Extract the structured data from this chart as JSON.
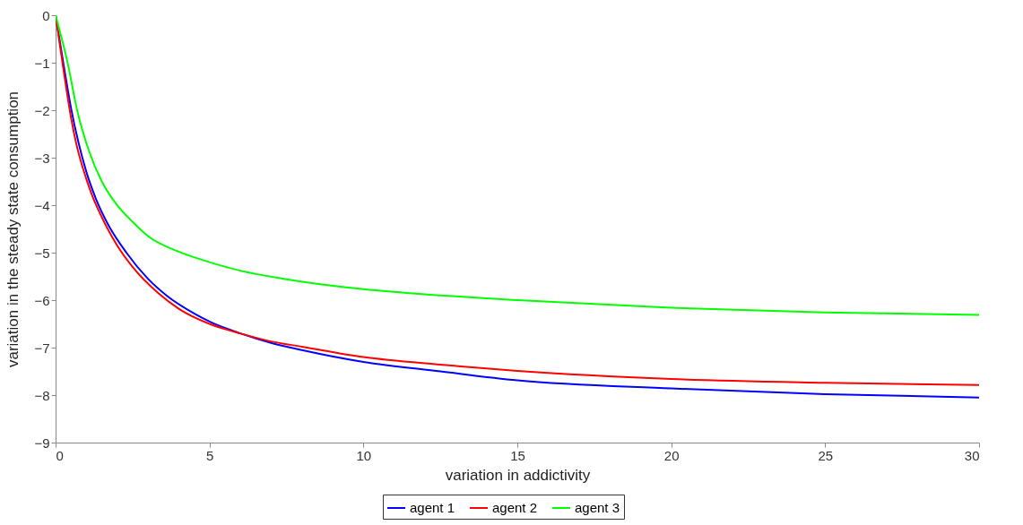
{
  "chart_data": {
    "type": "line",
    "xlabel": "variation in addictivity",
    "ylabel": "variation in the steady state consumption",
    "xlim": [
      0,
      30
    ],
    "ylim": [
      -9,
      0
    ],
    "xticks": [
      0,
      5,
      10,
      15,
      20,
      25,
      30
    ],
    "yticks": [
      -9,
      -8,
      -7,
      -6,
      -5,
      -4,
      -3,
      -2,
      -1,
      0
    ],
    "grid": false,
    "legend": "bottom",
    "line_style": "solid",
    "marker": "none",
    "series": [
      {
        "name": "agent 1",
        "color": "#0000ff",
        "x": [
          0,
          0.25,
          0.5,
          0.75,
          1,
          1.3,
          1.7,
          2.3,
          3,
          3.6,
          4.5,
          5,
          6,
          7,
          8,
          10,
          12.5,
          15,
          20,
          25,
          30
        ],
        "values": [
          0,
          -1.0,
          -1.95,
          -2.7,
          -3.3,
          -3.85,
          -4.4,
          -5.0,
          -5.55,
          -5.9,
          -6.28,
          -6.45,
          -6.7,
          -6.9,
          -7.05,
          -7.3,
          -7.5,
          -7.69,
          -7.86,
          -7.98,
          -8.05
        ]
      },
      {
        "name": "agent 2",
        "color": "#ff0000",
        "x": [
          0,
          0.23,
          0.5,
          0.67,
          1,
          1.19,
          1.5,
          2,
          2.5,
          3.33,
          4,
          5,
          6,
          7,
          8,
          10,
          12.5,
          15,
          20,
          25,
          30
        ],
        "values": [
          0,
          -1.03,
          -2.15,
          -2.7,
          -3.45,
          -3.8,
          -4.25,
          -4.85,
          -5.3,
          -5.85,
          -6.18,
          -6.5,
          -6.7,
          -6.87,
          -6.98,
          -7.2,
          -7.36,
          -7.49,
          -7.66,
          -7.74,
          -7.79
        ]
      },
      {
        "name": "agent 3",
        "color": "#00ff00",
        "x": [
          0,
          0.4,
          0.7,
          1.08,
          1.5,
          1.94,
          2.5,
          3,
          4,
          5,
          6,
          7.5,
          10,
          12.5,
          15,
          20,
          25,
          30
        ],
        "values": [
          0,
          -1.03,
          -2.0,
          -2.85,
          -3.5,
          -3.95,
          -4.35,
          -4.65,
          -4.98,
          -5.2,
          -5.38,
          -5.56,
          -5.77,
          -5.9,
          -6.0,
          -6.16,
          -6.26,
          -6.31
        ]
      }
    ]
  }
}
